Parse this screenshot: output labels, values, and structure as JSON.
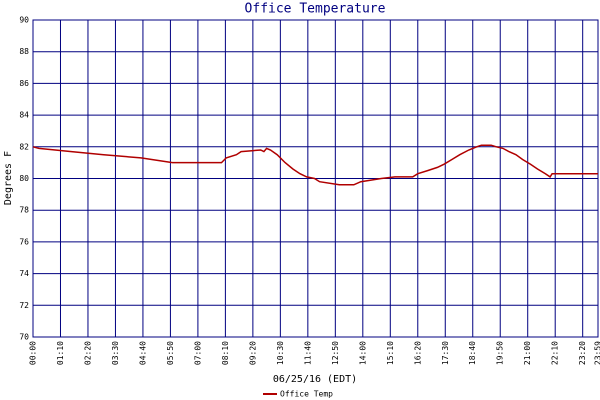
{
  "chart_data": {
    "type": "line",
    "title": "Office Temperature",
    "x_label": "06/25/16 (EDT)",
    "y_label": "Degrees F",
    "x": [
      "00:00",
      "00:15",
      "01:38",
      "03:00",
      "04:35",
      "05:55",
      "08:00",
      "08:12",
      "08:38",
      "08:50",
      "09:40",
      "09:48",
      "09:55",
      "10:05",
      "10:22",
      "10:42",
      "11:02",
      "11:20",
      "11:37",
      "11:57",
      "12:10",
      "13:00",
      "13:37",
      "13:55",
      "14:47",
      "15:22",
      "16:07",
      "16:20",
      "16:45",
      "17:10",
      "17:27",
      "17:47",
      "18:07",
      "18:30",
      "18:50",
      "19:02",
      "19:27",
      "19:40",
      "19:57",
      "20:12",
      "20:30",
      "20:47",
      "21:07",
      "21:25",
      "21:45",
      "21:57",
      "22:02",
      "23:59"
    ],
    "series": [
      {
        "name": "Office Temp",
        "color": "#b00000",
        "values": [
          82.0,
          81.9,
          81.7,
          81.5,
          81.3,
          81.0,
          81.0,
          81.3,
          81.5,
          81.7,
          81.8,
          81.7,
          81.9,
          81.8,
          81.5,
          81.0,
          80.6,
          80.3,
          80.1,
          80.0,
          79.8,
          79.6,
          79.6,
          79.8,
          80.0,
          80.1,
          80.1,
          80.3,
          80.5,
          80.7,
          80.9,
          81.2,
          81.5,
          81.8,
          82.0,
          82.1,
          82.1,
          82.0,
          81.9,
          81.7,
          81.5,
          81.2,
          80.9,
          80.6,
          80.3,
          80.1,
          80.3,
          80.3
        ]
      }
    ],
    "xlim": [
      "00:00",
      "23:59"
    ],
    "xticks": [
      "00:00",
      "01:10",
      "02:20",
      "03:30",
      "04:40",
      "05:50",
      "07:00",
      "08:10",
      "09:20",
      "10:30",
      "11:40",
      "12:50",
      "14:00",
      "15:10",
      "16:20",
      "17:30",
      "18:40",
      "19:50",
      "21:00",
      "22:10",
      "23:20",
      "23:59"
    ],
    "ylim": [
      70,
      90
    ],
    "yticks": [
      70,
      72,
      74,
      76,
      78,
      80,
      82,
      84,
      86,
      88,
      90
    ],
    "grid": true,
    "legend": "bottom"
  }
}
